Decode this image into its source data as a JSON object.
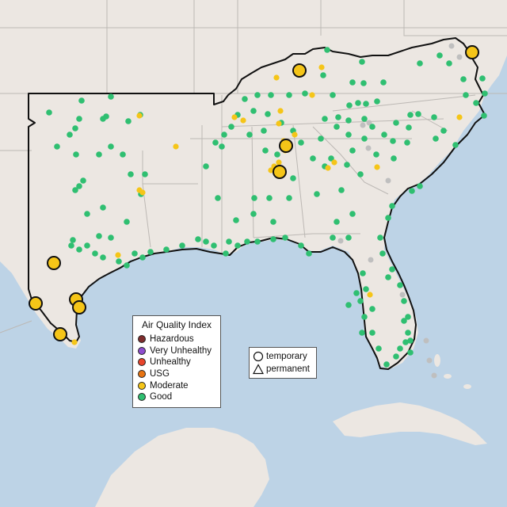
{
  "legend": {
    "title": "Air Quality Index",
    "categories": [
      {
        "label": "Hazardous",
        "color": "#7e2d2d"
      },
      {
        "label": "Very Unhealthy",
        "color": "#8e4ecf"
      },
      {
        "label": "Unhealthy",
        "color": "#e8452c"
      },
      {
        "label": "USG",
        "color": "#e87412"
      },
      {
        "label": "Moderate",
        "color": "#f5c518"
      },
      {
        "label": "Good",
        "color": "#2fbf71"
      }
    ]
  },
  "shape_legend": {
    "temporary": "temporary",
    "permanent": "permanent"
  },
  "colors": {
    "water": "#bdd3e6",
    "land": "#ece7e2",
    "state_border": "#bcb8b4",
    "region_outline": "#111111",
    "gray_monitor": "#bfbfbf"
  }
}
